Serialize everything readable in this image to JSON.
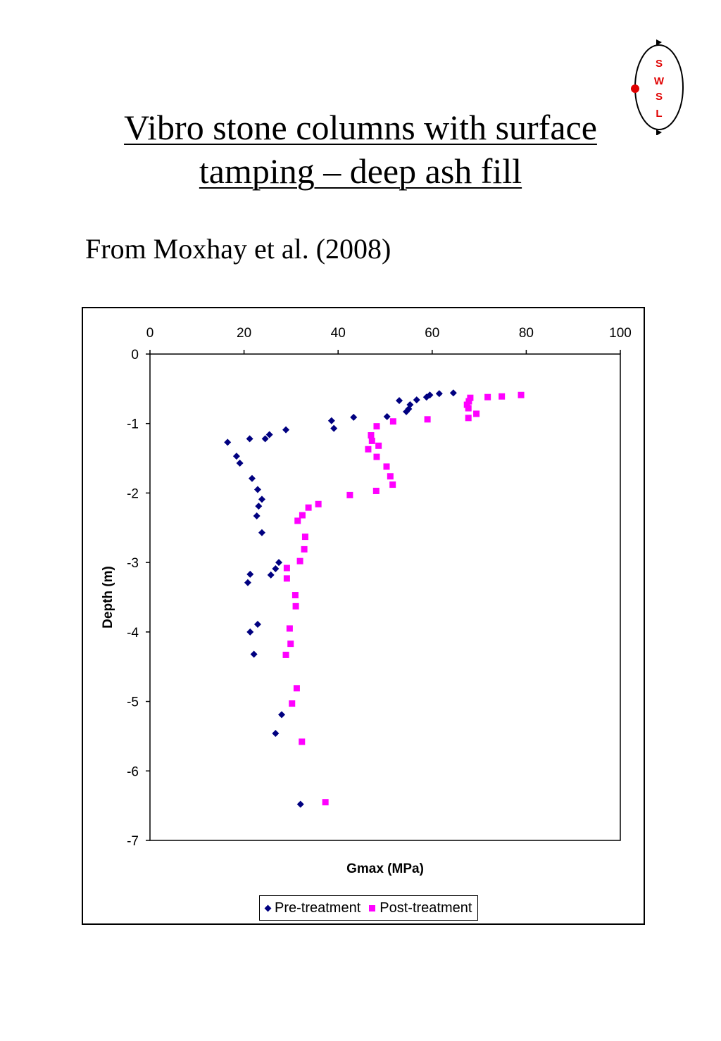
{
  "page": {
    "title_line1": "Vibro stone columns with surface",
    "title_line2": "tamping – deep ash fill",
    "subtitle": "From Moxhay et al. (2008)",
    "logo_letters": [
      "S",
      "W",
      "S",
      "L"
    ]
  },
  "chart_data": {
    "type": "scatter",
    "title": "",
    "xlabel": "Gmax (MPa)",
    "ylabel": "Depth (m)",
    "xlim": [
      0,
      100
    ],
    "ylim": [
      -7,
      0
    ],
    "x_ticks": [
      "0",
      "20",
      "40",
      "60",
      "80",
      "100"
    ],
    "y_ticks": [
      "0",
      "-1",
      "-2",
      "-3",
      "-4",
      "-5",
      "-6",
      "-7"
    ],
    "x_axis_position": "top",
    "grid": false,
    "legend_position": "bottom",
    "series": [
      {
        "name": "Pre-treatment",
        "color": "#000080",
        "marker": "diamond",
        "points": [
          [
            64.5,
            -0.56
          ],
          [
            61.5,
            -0.57
          ],
          [
            59.5,
            -0.59
          ],
          [
            58.8,
            -0.62
          ],
          [
            56.7,
            -0.66
          ],
          [
            53.0,
            -0.67
          ],
          [
            55.3,
            -0.73
          ],
          [
            55.0,
            -0.79
          ],
          [
            54.5,
            -0.83
          ],
          [
            50.4,
            -0.9
          ],
          [
            43.3,
            -0.91
          ],
          [
            38.6,
            -0.96
          ],
          [
            39.1,
            -1.07
          ],
          [
            28.9,
            -1.09
          ],
          [
            25.4,
            -1.16
          ],
          [
            24.5,
            -1.22
          ],
          [
            21.2,
            -1.22
          ],
          [
            16.5,
            -1.27
          ],
          [
            18.4,
            -1.47
          ],
          [
            19.1,
            -1.57
          ],
          [
            21.7,
            -1.79
          ],
          [
            22.9,
            -1.95
          ],
          [
            23.8,
            -2.09
          ],
          [
            23.1,
            -2.19
          ],
          [
            22.7,
            -2.33
          ],
          [
            23.8,
            -2.57
          ],
          [
            27.4,
            -3.0
          ],
          [
            26.7,
            -3.09
          ],
          [
            25.7,
            -3.18
          ],
          [
            21.3,
            -3.17
          ],
          [
            20.8,
            -3.29
          ],
          [
            22.9,
            -3.89
          ],
          [
            21.3,
            -4.0
          ],
          [
            22.1,
            -4.32
          ],
          [
            28.0,
            -5.19
          ],
          [
            26.7,
            -5.46
          ],
          [
            32.0,
            -6.48
          ]
        ]
      },
      {
        "name": "Post-treatment",
        "color": "#ff00ff",
        "marker": "square",
        "points": [
          [
            78.9,
            -0.59
          ],
          [
            74.8,
            -0.61
          ],
          [
            71.8,
            -0.62
          ],
          [
            68.1,
            -0.63
          ],
          [
            67.8,
            -0.68
          ],
          [
            67.4,
            -0.73
          ],
          [
            67.7,
            -0.78
          ],
          [
            69.4,
            -0.86
          ],
          [
            67.7,
            -0.92
          ],
          [
            59.0,
            -0.94
          ],
          [
            51.7,
            -0.97
          ],
          [
            48.2,
            -1.04
          ],
          [
            47.0,
            -1.17
          ],
          [
            47.2,
            -1.25
          ],
          [
            48.6,
            -1.32
          ],
          [
            46.4,
            -1.37
          ],
          [
            48.2,
            -1.48
          ],
          [
            50.3,
            -1.62
          ],
          [
            51.1,
            -1.76
          ],
          [
            51.6,
            -1.88
          ],
          [
            48.1,
            -1.97
          ],
          [
            42.5,
            -2.03
          ],
          [
            35.8,
            -2.16
          ],
          [
            33.7,
            -2.21
          ],
          [
            32.4,
            -2.32
          ],
          [
            31.4,
            -2.4
          ],
          [
            33.0,
            -2.63
          ],
          [
            32.8,
            -2.81
          ],
          [
            31.9,
            -2.98
          ],
          [
            29.1,
            -3.08
          ],
          [
            29.1,
            -3.23
          ],
          [
            30.9,
            -3.47
          ],
          [
            31.0,
            -3.63
          ],
          [
            29.7,
            -3.95
          ],
          [
            29.9,
            -4.17
          ],
          [
            28.9,
            -4.33
          ],
          [
            31.2,
            -4.81
          ],
          [
            30.2,
            -5.03
          ],
          [
            32.3,
            -5.58
          ],
          [
            37.3,
            -6.45
          ]
        ]
      }
    ]
  }
}
